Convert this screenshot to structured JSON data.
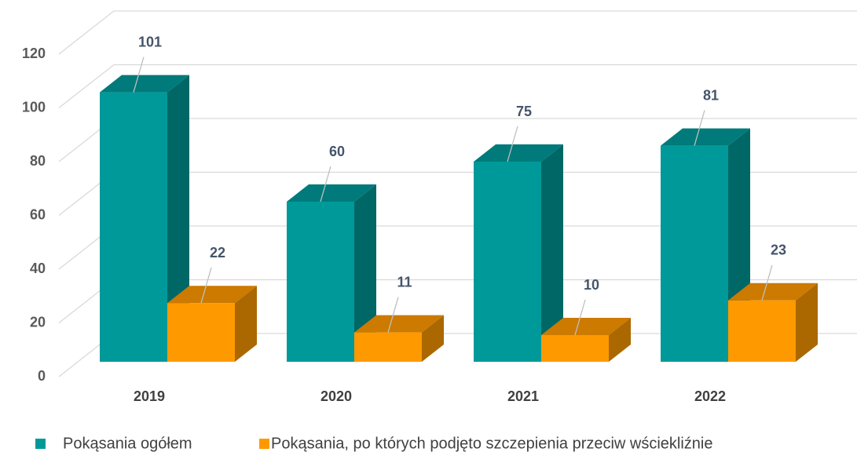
{
  "chart_data": {
    "type": "bar",
    "categories": [
      "2019",
      "2020",
      "2021",
      "2022"
    ],
    "series": [
      {
        "name": "Pokąsania ogółem",
        "color": "#009999",
        "values": [
          101,
          60,
          75,
          81
        ]
      },
      {
        "name": "Pokąsania, po których podjęto szczepienia przeciw wściekliźnie",
        "color": "#ff9900",
        "values": [
          22,
          11,
          10,
          23
        ]
      }
    ],
    "ylim": [
      0,
      120
    ],
    "yticks": [
      0,
      20,
      40,
      60,
      80,
      100,
      120
    ],
    "grid": true
  }
}
